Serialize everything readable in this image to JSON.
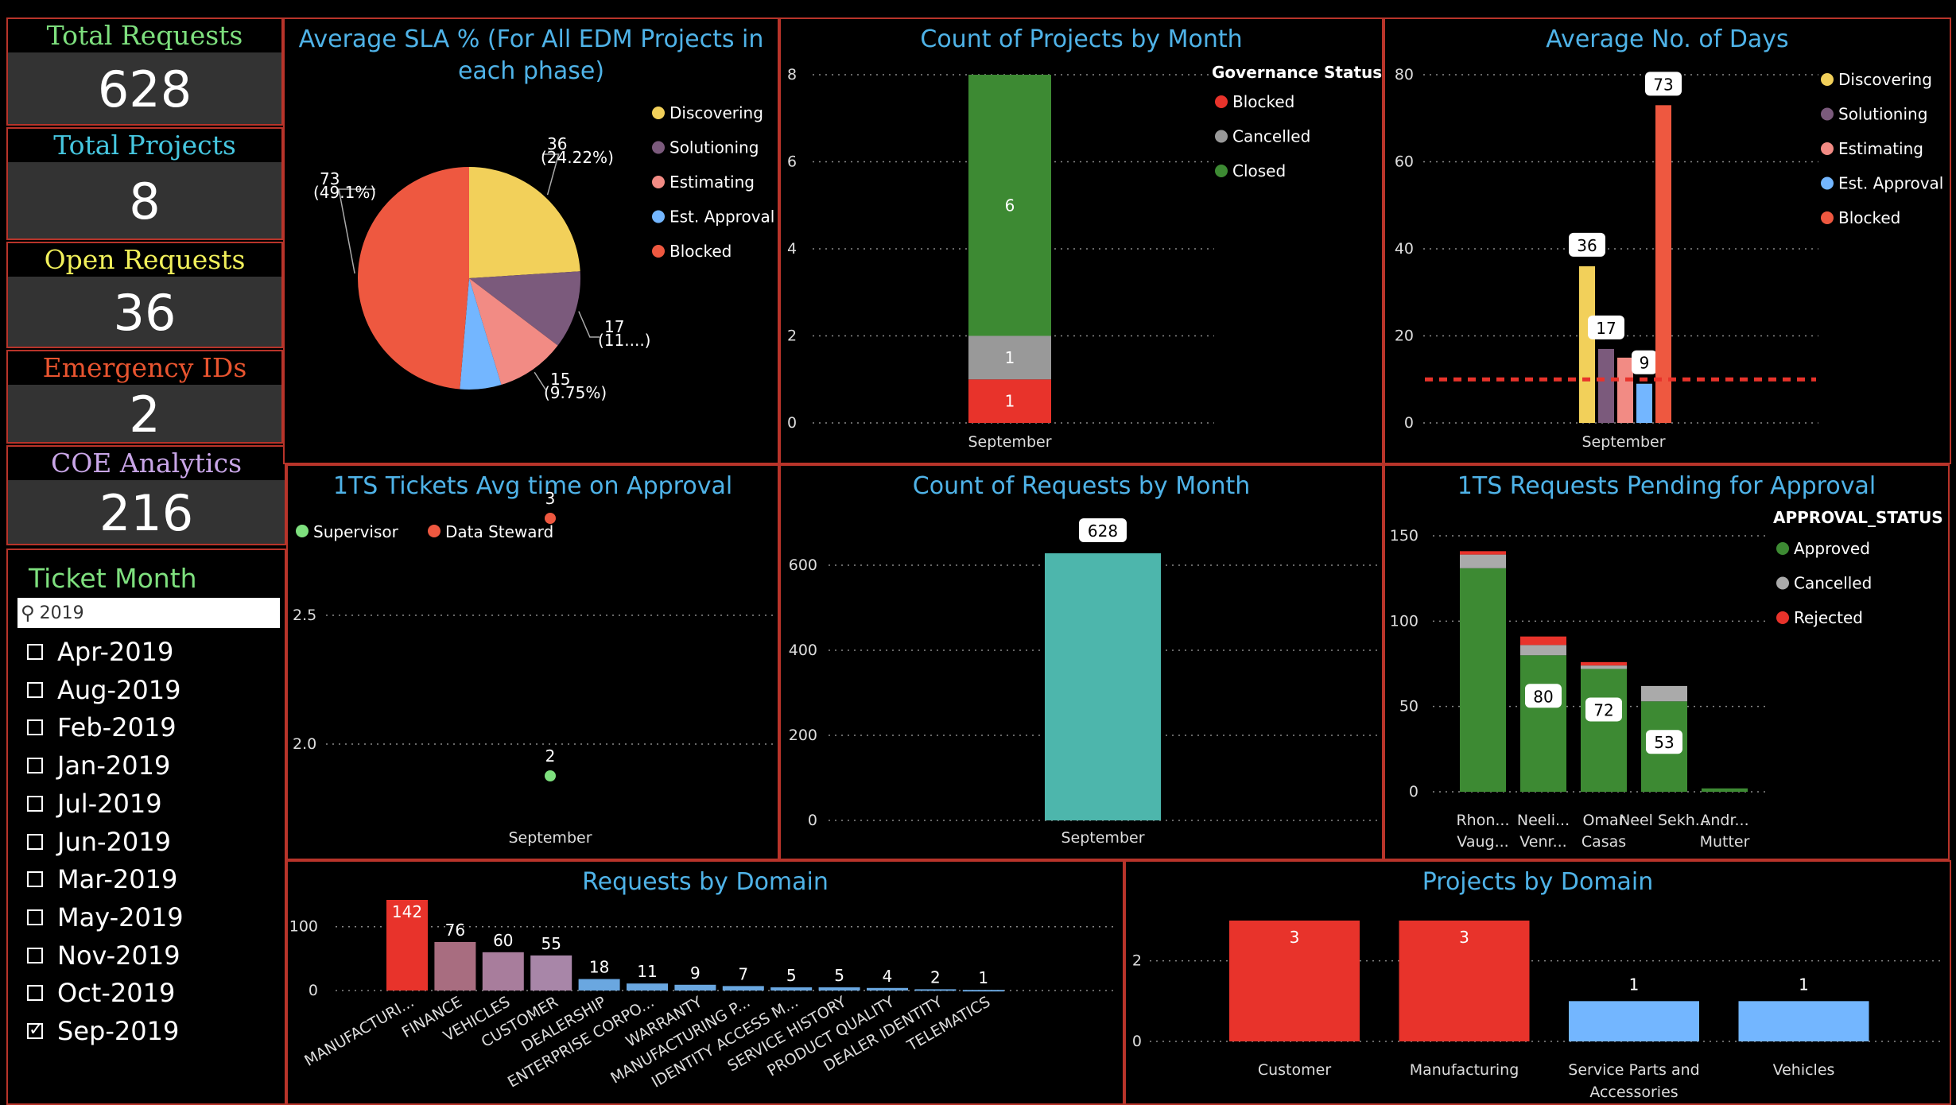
{
  "kpis": [
    {
      "title": "Total Requests",
      "value": "628",
      "color": "#7ee07e"
    },
    {
      "title": "Total Projects",
      "value": "8",
      "color": "#46c7e0"
    },
    {
      "title": "Open Requests",
      "value": "36",
      "color": "#f1f05a"
    },
    {
      "title": "Emergency IDs",
      "value": "2",
      "color": "#e8542f"
    },
    {
      "title": "COE Analytics",
      "value": "216",
      "color": "#c9a6e8"
    }
  ],
  "slicer": {
    "title": "Ticket Month",
    "search_value": "2019",
    "items": [
      {
        "label": "Apr-2019",
        "checked": false
      },
      {
        "label": "Aug-2019",
        "checked": false
      },
      {
        "label": "Feb-2019",
        "checked": false
      },
      {
        "label": "Jan-2019",
        "checked": false
      },
      {
        "label": "Jul-2019",
        "checked": false
      },
      {
        "label": "Jun-2019",
        "checked": false
      },
      {
        "label": "Mar-2019",
        "checked": false
      },
      {
        "label": "May-2019",
        "checked": false
      },
      {
        "label": "Nov-2019",
        "checked": false
      },
      {
        "label": "Oct-2019",
        "checked": false
      },
      {
        "label": "Sep-2019",
        "checked": true
      }
    ]
  },
  "chart_data": [
    {
      "id": "sla_pie",
      "type": "pie",
      "title": "Average SLA % (For All EDM Projects in each phase)",
      "slices": [
        {
          "name": "Discovering",
          "value": 36,
          "label": "36",
          "pct_label": "(24.22%)",
          "color": "#f2d05a"
        },
        {
          "name": "Solutioning",
          "value": 17,
          "label": "17",
          "pct_label": "(11....)",
          "color": "#7b5a7c"
        },
        {
          "name": "Estimating",
          "value": 15,
          "label": "15",
          "pct_label": "(9.75%)",
          "color": "#f28b84"
        },
        {
          "name": "Est. Approval",
          "value": 9,
          "label": "",
          "pct_label": "",
          "color": "#73b6ff"
        },
        {
          "name": "Blocked",
          "value": 73,
          "label": "73",
          "pct_label": "(49.1%)",
          "color": "#ee5840"
        }
      ]
    },
    {
      "id": "projects_month",
      "type": "bar",
      "title": "Count of Projects by Month",
      "legend_title": "Governance Status",
      "categories": [
        "September"
      ],
      "series": [
        {
          "name": "Blocked",
          "values": [
            1
          ],
          "color": "#e8332b"
        },
        {
          "name": "Cancelled",
          "values": [
            1
          ],
          "color": "#999999"
        },
        {
          "name": "Closed",
          "values": [
            6
          ],
          "color": "#3d8a33"
        }
      ],
      "ylim": [
        0,
        8
      ],
      "yticks": [
        "0",
        "2",
        "4",
        "6",
        "8"
      ]
    },
    {
      "id": "avg_days",
      "type": "bar",
      "title": "Average No. of Days",
      "categories": [
        "September"
      ],
      "series": [
        {
          "name": "Discovering",
          "values": [
            36
          ],
          "label": "36",
          "color": "#f2d05a"
        },
        {
          "name": "Solutioning",
          "values": [
            17
          ],
          "label": "17",
          "color": "#7b5a7c"
        },
        {
          "name": "Estimating",
          "values": [
            15
          ],
          "label": "",
          "color": "#f28b84"
        },
        {
          "name": "Est. Approval",
          "values": [
            9
          ],
          "label": "9",
          "color": "#73b6ff"
        },
        {
          "name": "Blocked",
          "values": [
            73
          ],
          "label": "73",
          "color": "#ee5840"
        }
      ],
      "reference_line": 10,
      "ylim": [
        0,
        80
      ],
      "yticks": [
        "0",
        "20",
        "40",
        "60",
        "80"
      ]
    },
    {
      "id": "tickets_approval",
      "type": "scatter",
      "title": "1TS Tickets Avg time on Approval",
      "categories": [
        "September"
      ],
      "series": [
        {
          "name": "Supervisor",
          "values": [
            2
          ],
          "color": "#7ee07e"
        },
        {
          "name": "Data Steward",
          "values": [
            3
          ],
          "color": "#ee5840"
        }
      ],
      "yticks": [
        "2.0",
        "2.5"
      ]
    },
    {
      "id": "requests_month",
      "type": "bar",
      "title": "Count of Requests by Month",
      "categories": [
        "September"
      ],
      "values": [
        628
      ],
      "label": "628",
      "color": "#4db6ac",
      "ylim": [
        0,
        628
      ],
      "yticks": [
        "0",
        "200",
        "400",
        "600"
      ]
    },
    {
      "id": "pending_approval",
      "type": "bar",
      "title": "1TS Requests Pending for Approval",
      "legend_title": "APPROVAL_STATUS",
      "categories": [
        "Rhon... Vaug...",
        "Neeli... Venr...",
        "Omar Casas",
        "Neel Sekh...",
        "Andr... Mutter"
      ],
      "series": [
        {
          "name": "Approved",
          "values": [
            131,
            80,
            72,
            53,
            2
          ],
          "color": "#3d8a33"
        },
        {
          "name": "Cancelled",
          "values": [
            8,
            6,
            2,
            9,
            0
          ],
          "color": "#aaaaaa"
        },
        {
          "name": "Rejected",
          "values": [
            2,
            5,
            2,
            0,
            0
          ],
          "color": "#e8332b"
        }
      ],
      "data_labels": [
        "",
        "80",
        "72",
        "53",
        ""
      ],
      "ylim": [
        0,
        150
      ],
      "yticks": [
        "0",
        "50",
        "100",
        "150"
      ]
    },
    {
      "id": "requests_domain",
      "type": "bar",
      "title": "Requests by Domain",
      "categories": [
        "MANUFACTURI...",
        "FINANCE",
        "VEHICLES",
        "CUSTOMER",
        "DEALERSHIP",
        "ENTERPRISE CORPO...",
        "WARRANTY",
        "MANUFACTURING P...",
        "IDENTITY ACCESS M...",
        "SERVICE HISTORY",
        "PRODUCT QUALITY",
        "DEALER IDENTITY",
        "TELEMATICS"
      ],
      "values": [
        142,
        76,
        60,
        55,
        18,
        11,
        9,
        7,
        5,
        5,
        4,
        2,
        1
      ],
      "colors": [
        "#e8332b",
        "#a86d80",
        "#a87d9c",
        "#a886a8",
        "#6aa7e0",
        "#6aa7e0",
        "#6aa7e0",
        "#6aa7e0",
        "#6aa7e0",
        "#6aa7e0",
        "#6aa7e0",
        "#6aa7e0",
        "#6aa7e0"
      ],
      "ylim": [
        0,
        142
      ],
      "yticks": [
        "0",
        "100"
      ]
    },
    {
      "id": "projects_domain",
      "type": "bar",
      "title": "Projects by Domain",
      "categories": [
        "Customer",
        "Manufacturing",
        "Service Parts and Accessories",
        "Vehicles"
      ],
      "values": [
        3,
        3,
        1,
        1
      ],
      "colors": [
        "#e8332b",
        "#e8332b",
        "#73b6ff",
        "#73b6ff"
      ],
      "ylim": [
        0,
        3
      ],
      "yticks": [
        "0",
        "2"
      ]
    }
  ]
}
